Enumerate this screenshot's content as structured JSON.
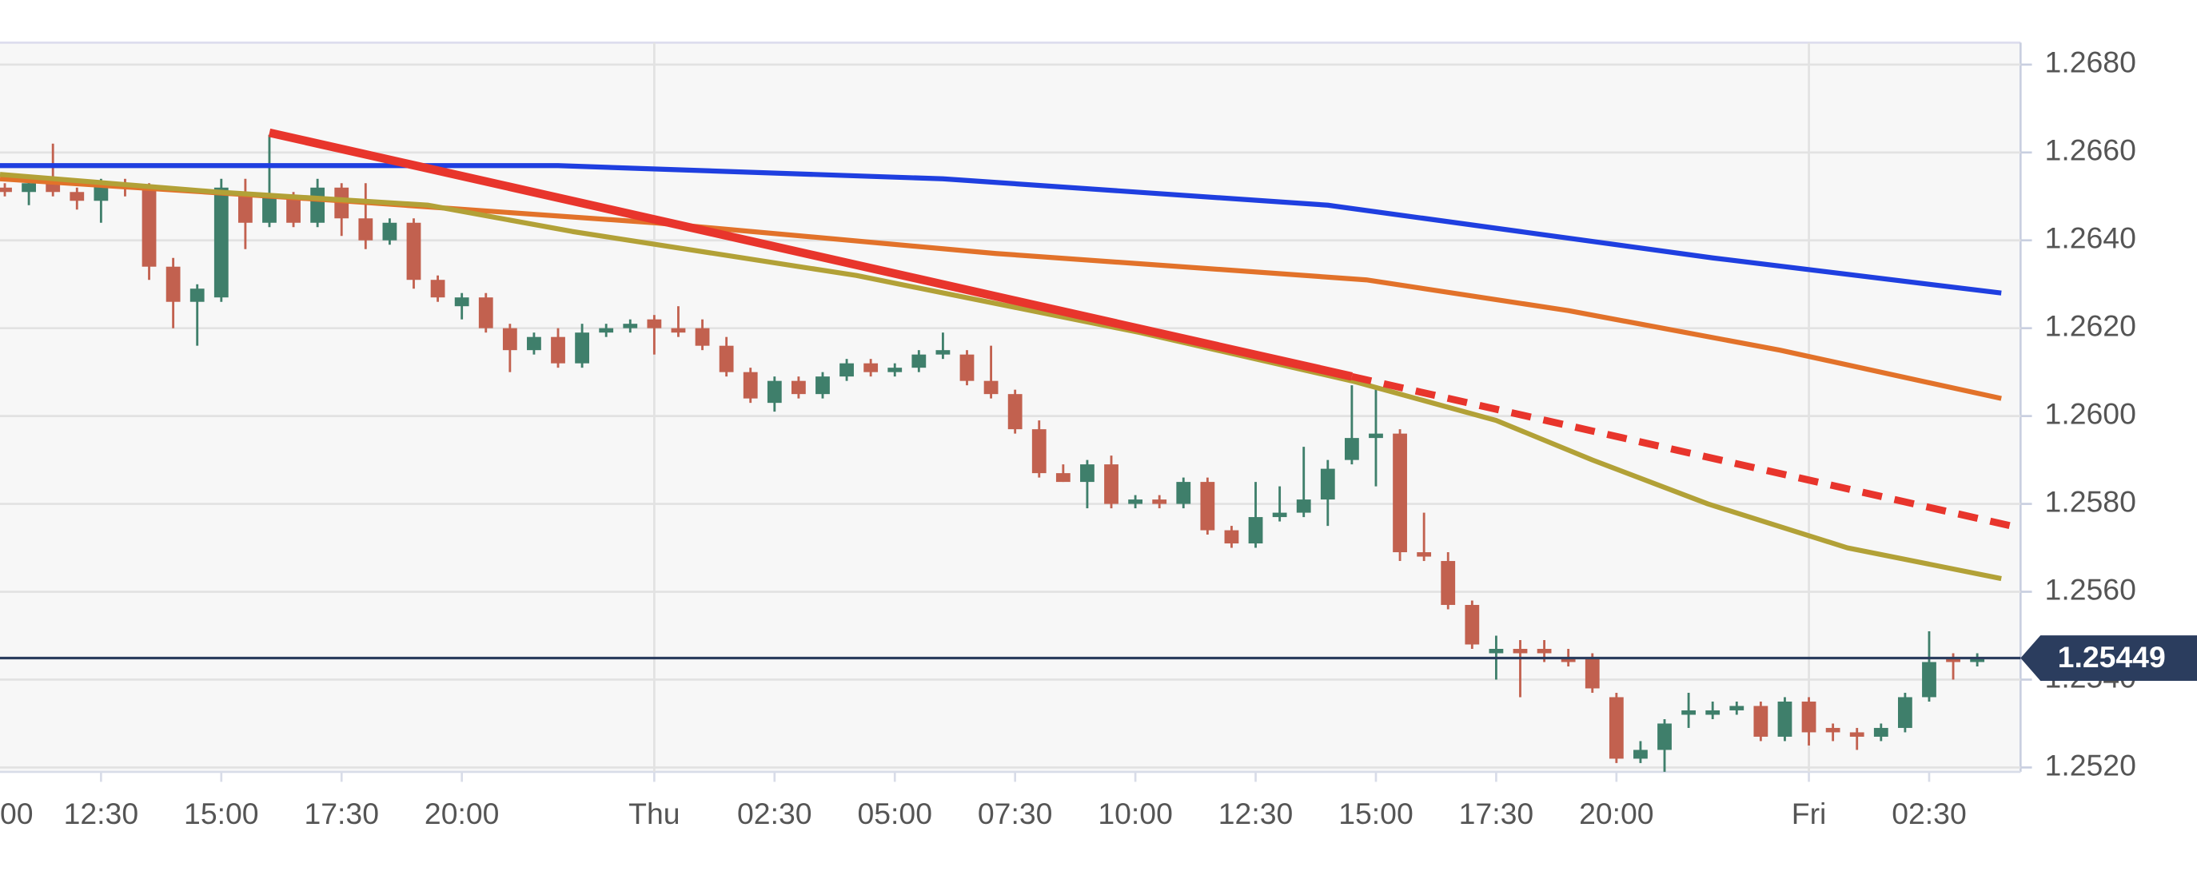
{
  "chart_data": {
    "type": "candlestick",
    "xlim": [
      10.4,
      52.4
    ],
    "ylim": [
      1.2519,
      1.2685
    ],
    "xticks": [
      {
        "value": 10,
        "label": "00"
      },
      {
        "value": 12.5,
        "label": "12:30"
      },
      {
        "value": 15,
        "label": "15:00"
      },
      {
        "value": 17.5,
        "label": "17:30"
      },
      {
        "value": 20,
        "label": "20:00"
      },
      {
        "value": 24,
        "label": "Thu"
      },
      {
        "value": 26.5,
        "label": "02:30"
      },
      {
        "value": 29,
        "label": "05:00"
      },
      {
        "value": 31.5,
        "label": "07:30"
      },
      {
        "value": 34,
        "label": "10:00"
      },
      {
        "value": 36.5,
        "label": "12:30"
      },
      {
        "value": 39,
        "label": "15:00"
      },
      {
        "value": 41.5,
        "label": "17:30"
      },
      {
        "value": 44,
        "label": "20:00"
      },
      {
        "value": 48,
        "label": "Fri"
      },
      {
        "value": 50.5,
        "label": "02:30"
      }
    ],
    "yticks": [
      {
        "value": 1.252,
        "label": "1.2520"
      },
      {
        "value": 1.254,
        "label": "1.2540"
      },
      {
        "value": 1.256,
        "label": "1.2560"
      },
      {
        "value": 1.258,
        "label": "1.2580"
      },
      {
        "value": 1.26,
        "label": "1.2600"
      },
      {
        "value": 1.262,
        "label": "1.2620"
      },
      {
        "value": 1.264,
        "label": "1.2640"
      },
      {
        "value": 1.266,
        "label": "1.2660"
      },
      {
        "value": 1.268,
        "label": "1.2680"
      }
    ],
    "grid": true,
    "up_color": "#3f7f6b",
    "down_color": "#c2614f",
    "candles": {
      "x": [
        10.5,
        11,
        11.5,
        12,
        12.5,
        13,
        13.5,
        14,
        14.5,
        15,
        15.5,
        16,
        16.5,
        17,
        17.5,
        18,
        18.5,
        19,
        19.5,
        20,
        20.5,
        21,
        21.5,
        22,
        22.5,
        23,
        23.5,
        24,
        24.5,
        25,
        25.5,
        26,
        26.5,
        27,
        27.5,
        28,
        28.5,
        29,
        29.5,
        30,
        30.5,
        31,
        31.5,
        32,
        32.5,
        33,
        33.5,
        34,
        34.5,
        35,
        35.5,
        36,
        36.5,
        37,
        37.5,
        38,
        38.5,
        39,
        39.5,
        40,
        40.5,
        41,
        41.5,
        42,
        42.5,
        43,
        43.5,
        44,
        44.5,
        45,
        45.5,
        46,
        46.5,
        47,
        47.5,
        48,
        48.5,
        49,
        49.5,
        50,
        50.5,
        51,
        51.5
      ],
      "open": [
        1.2652,
        1.2651,
        1.2653,
        1.2651,
        1.2649,
        1.2653,
        1.2652,
        1.2634,
        1.2626,
        1.2627,
        1.2651,
        1.2644,
        1.265,
        1.2644,
        1.2652,
        1.2645,
        1.264,
        1.2644,
        1.2631,
        1.2625,
        1.2627,
        1.262,
        1.2615,
        1.2618,
        1.2612,
        1.2619,
        1.262,
        1.2622,
        1.262,
        1.262,
        1.2616,
        1.261,
        1.2603,
        1.2608,
        1.2605,
        1.2609,
        1.2612,
        1.261,
        1.2611,
        1.2614,
        1.2614,
        1.2608,
        1.2605,
        1.2597,
        1.2587,
        1.2585,
        1.2589,
        1.258,
        1.2581,
        1.258,
        1.2585,
        1.2574,
        1.2571,
        1.2577,
        1.2578,
        1.2581,
        1.259,
        1.2595,
        1.2596,
        1.2569,
        1.2567,
        1.2557,
        1.2546,
        1.2547,
        1.2547,
        1.2545,
        1.2545,
        1.2536,
        1.2522,
        1.2524,
        1.2532,
        1.2532,
        1.2533,
        1.2534,
        1.2527,
        1.2535,
        1.2529,
        1.2528,
        1.2527,
        1.2529,
        1.2536,
        1.2545,
        1.2544
      ],
      "high": [
        1.2653,
        1.2654,
        1.2662,
        1.2652,
        1.2654,
        1.2654,
        1.2653,
        1.2636,
        1.263,
        1.2654,
        1.2654,
        1.2664,
        1.2651,
        1.2654,
        1.2653,
        1.2653,
        1.2645,
        1.2645,
        1.2632,
        1.2628,
        1.2628,
        1.2621,
        1.2619,
        1.262,
        1.2621,
        1.2621,
        1.2622,
        1.2623,
        1.2625,
        1.2622,
        1.2618,
        1.2611,
        1.2609,
        1.2609,
        1.261,
        1.2613,
        1.2613,
        1.2612,
        1.2615,
        1.2619,
        1.2615,
        1.2616,
        1.2606,
        1.2599,
        1.2589,
        1.259,
        1.2591,
        1.2582,
        1.2582,
        1.2586,
        1.2586,
        1.2575,
        1.2585,
        1.2584,
        1.2593,
        1.259,
        1.2607,
        1.2606,
        1.2597,
        1.2578,
        1.2569,
        1.2558,
        1.255,
        1.2549,
        1.2549,
        1.2547,
        1.2546,
        1.2537,
        1.2526,
        1.2531,
        1.2537,
        1.2535,
        1.2535,
        1.2535,
        1.2536,
        1.2536,
        1.253,
        1.2529,
        1.253,
        1.2537,
        1.2551,
        1.2546,
        1.2546
      ],
      "low": [
        1.265,
        1.2648,
        1.265,
        1.2647,
        1.2644,
        1.265,
        1.2631,
        1.262,
        1.2616,
        1.2626,
        1.2638,
        1.2643,
        1.2643,
        1.2643,
        1.2641,
        1.2638,
        1.2639,
        1.2629,
        1.2626,
        1.2622,
        1.2619,
        1.261,
        1.2614,
        1.2611,
        1.2611,
        1.2618,
        1.2619,
        1.2614,
        1.2618,
        1.2615,
        1.2609,
        1.2603,
        1.2601,
        1.2604,
        1.2604,
        1.2608,
        1.2609,
        1.2609,
        1.261,
        1.2613,
        1.2607,
        1.2604,
        1.2596,
        1.2586,
        1.2585,
        1.2579,
        1.2579,
        1.2579,
        1.2579,
        1.2579,
        1.2573,
        1.257,
        1.257,
        1.2576,
        1.2577,
        1.2575,
        1.2589,
        1.2584,
        1.2567,
        1.2567,
        1.2556,
        1.2547,
        1.254,
        1.2536,
        1.2544,
        1.2543,
        1.2537,
        1.2521,
        1.2521,
        1.2519,
        1.2529,
        1.2531,
        1.2532,
        1.2526,
        1.2526,
        1.2525,
        1.2526,
        1.2524,
        1.2526,
        1.2528,
        1.2535,
        1.254,
        1.2543
      ],
      "close": [
        1.2651,
        1.2653,
        1.2651,
        1.2649,
        1.2653,
        1.2652,
        1.2634,
        1.2626,
        1.2629,
        1.2652,
        1.2644,
        1.265,
        1.2644,
        1.2652,
        1.2645,
        1.264,
        1.2644,
        1.2631,
        1.2627,
        1.2627,
        1.262,
        1.2615,
        1.2618,
        1.2612,
        1.2619,
        1.262,
        1.2621,
        1.262,
        1.2619,
        1.2616,
        1.261,
        1.2604,
        1.2608,
        1.2605,
        1.2609,
        1.2612,
        1.261,
        1.2611,
        1.2614,
        1.2615,
        1.2608,
        1.2605,
        1.2597,
        1.2587,
        1.2585,
        1.2589,
        1.258,
        1.2581,
        1.258,
        1.2585,
        1.2574,
        1.2571,
        1.2577,
        1.2578,
        1.2581,
        1.2588,
        1.2595,
        1.2596,
        1.2569,
        1.2568,
        1.2557,
        1.2548,
        1.2547,
        1.2546,
        1.2546,
        1.2544,
        1.2538,
        1.2522,
        1.2524,
        1.253,
        1.2533,
        1.2533,
        1.2534,
        1.2527,
        1.2535,
        1.2528,
        1.2528,
        1.2527,
        1.2529,
        1.2536,
        1.2544,
        1.2544,
        1.2545
      ]
    },
    "lines": [
      {
        "color": "#1f3fe0",
        "width": 3.5,
        "x": [
          10.4,
          22,
          30,
          38,
          42,
          46,
          52
        ],
        "values": [
          1.2657,
          1.2657,
          1.2654,
          1.2648,
          1.2642,
          1.2636,
          1.2628
        ]
      },
      {
        "color": "#e2722a",
        "width": 3.5,
        "x": [
          10.4,
          17.5,
          24,
          31.1,
          38.8,
          43,
          47.4,
          52
        ],
        "values": [
          1.2654,
          1.2649,
          1.2644,
          1.2637,
          1.2631,
          1.2624,
          1.2615,
          1.2604
        ]
      },
      {
        "color": "#b2a137",
        "width": 3.5,
        "x": [
          10.4,
          14.9,
          19.3,
          22.3,
          28.2,
          34.1,
          38.5,
          41.5,
          43.5,
          45.9,
          48.8,
          52
        ],
        "values": [
          1.2655,
          1.2651,
          1.2648,
          1.2642,
          1.2632,
          1.2619,
          1.2608,
          1.2599,
          1.259,
          1.258,
          1.257,
          1.2563
        ]
      },
      {
        "color": "#e8352c",
        "width": 6,
        "dash": false,
        "x": [
          16,
          38.5
        ],
        "values": [
          1.26645,
          1.2609
        ]
      },
      {
        "color": "#e8352c",
        "width": 5,
        "dash": true,
        "x": [
          38.5,
          52.4
        ],
        "values": [
          1.2609,
          1.25745
        ]
      }
    ],
    "last_price": 1.25449,
    "last_price_color": "#2b3d5e"
  }
}
